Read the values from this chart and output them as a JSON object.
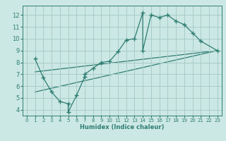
{
  "xlabel": "Humidex (Indice chaleur)",
  "bg_color": "#cce8e4",
  "grid_color": "#a8ccc8",
  "line_color": "#2e7d72",
  "xlim": [
    -0.5,
    23.5
  ],
  "ylim": [
    3.5,
    12.8
  ],
  "xticks": [
    0,
    1,
    2,
    3,
    4,
    5,
    6,
    7,
    8,
    9,
    10,
    11,
    12,
    13,
    14,
    15,
    16,
    17,
    18,
    19,
    20,
    21,
    22,
    23
  ],
  "yticks": [
    4,
    5,
    6,
    7,
    8,
    9,
    10,
    11,
    12
  ],
  "curve_x": [
    1,
    2,
    3,
    4,
    5,
    5,
    6,
    7,
    7,
    8,
    9,
    10,
    11,
    12,
    13,
    14,
    14,
    15,
    16,
    17,
    18,
    19,
    20,
    21,
    23
  ],
  "curve_y": [
    8.3,
    6.7,
    5.5,
    4.7,
    4.5,
    3.8,
    5.2,
    6.8,
    7.0,
    7.5,
    8.0,
    8.1,
    8.9,
    9.9,
    10.0,
    12.2,
    9.0,
    12.0,
    11.8,
    12.0,
    11.5,
    11.2,
    10.5,
    9.8,
    9.0
  ],
  "line2_x": [
    1,
    23
  ],
  "line2_y": [
    7.2,
    9.0
  ],
  "line3_x": [
    1,
    23
  ],
  "line3_y": [
    5.5,
    9.0
  ]
}
